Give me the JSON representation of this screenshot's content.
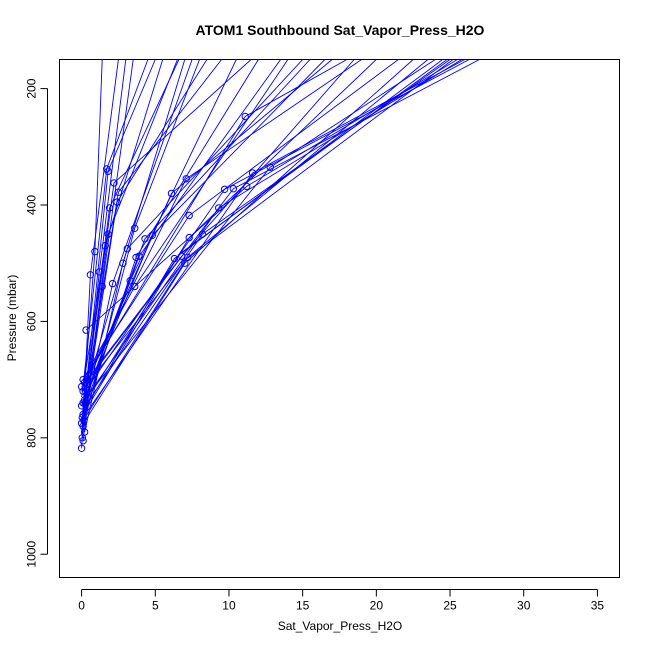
{
  "chart_data": {
    "type": "line",
    "title": "ATOM1 Southbound Sat_Vapor_Press_H2O",
    "xlabel": "Sat_Vapor_Press_H2O",
    "ylabel": "Pressure (mbar)",
    "xlim": [
      -1.5,
      36.5
    ],
    "ylim": [
      1040,
      150
    ],
    "y_reversed": true,
    "xticks": [
      0,
      5,
      10,
      15,
      20,
      25,
      30,
      35
    ],
    "yticks": [
      200,
      400,
      600,
      800,
      1000
    ],
    "grid": false,
    "line_color": "#0000ff",
    "marker": "open-circle",
    "points": [
      {
        "x": 0.0,
        "y": 818
      },
      {
        "x": 0.1,
        "y": 805
      },
      {
        "x": 0.05,
        "y": 800
      },
      {
        "x": 0.2,
        "y": 790
      },
      {
        "x": 0.1,
        "y": 780
      },
      {
        "x": 0.0,
        "y": 775
      },
      {
        "x": 0.15,
        "y": 770
      },
      {
        "x": 0.05,
        "y": 765
      },
      {
        "x": 0.1,
        "y": 760
      },
      {
        "x": 0.0,
        "y": 745
      },
      {
        "x": 0.1,
        "y": 740
      },
      {
        "x": 0.2,
        "y": 735
      },
      {
        "x": 0.1,
        "y": 720
      },
      {
        "x": 0.0,
        "y": 712
      },
      {
        "x": 0.2,
        "y": 705
      },
      {
        "x": 0.1,
        "y": 700
      },
      {
        "x": 0.3,
        "y": 615
      },
      {
        "x": 0.6,
        "y": 520
      },
      {
        "x": 0.9,
        "y": 480
      },
      {
        "x": 1.2,
        "y": 515
      },
      {
        "x": 1.4,
        "y": 540
      },
      {
        "x": 1.6,
        "y": 470
      },
      {
        "x": 1.8,
        "y": 450
      },
      {
        "x": 1.9,
        "y": 405
      },
      {
        "x": 1.7,
        "y": 338
      },
      {
        "x": 1.8,
        "y": 342
      },
      {
        "x": 2.2,
        "y": 362
      },
      {
        "x": 2.5,
        "y": 378
      },
      {
        "x": 2.4,
        "y": 395
      },
      {
        "x": 2.1,
        "y": 535
      },
      {
        "x": 2.8,
        "y": 500
      },
      {
        "x": 3.1,
        "y": 475
      },
      {
        "x": 3.3,
        "y": 530
      },
      {
        "x": 3.6,
        "y": 440
      },
      {
        "x": 3.7,
        "y": 490
      },
      {
        "x": 3.9,
        "y": 488
      },
      {
        "x": 3.6,
        "y": 540
      },
      {
        "x": 4.3,
        "y": 458
      },
      {
        "x": 4.8,
        "y": 452
      },
      {
        "x": 6.1,
        "y": 380
      },
      {
        "x": 6.3,
        "y": 492
      },
      {
        "x": 6.8,
        "y": 488
      },
      {
        "x": 7.0,
        "y": 500
      },
      {
        "x": 7.2,
        "y": 490
      },
      {
        "x": 7.1,
        "y": 355
      },
      {
        "x": 7.3,
        "y": 418
      },
      {
        "x": 7.3,
        "y": 456
      },
      {
        "x": 8.2,
        "y": 450
      },
      {
        "x": 9.3,
        "y": 405
      },
      {
        "x": 9.7,
        "y": 373
      },
      {
        "x": 10.3,
        "y": 372
      },
      {
        "x": 11.2,
        "y": 368
      },
      {
        "x": 11.1,
        "y": 248
      },
      {
        "x": 11.6,
        "y": 345
      },
      {
        "x": 12.8,
        "y": 335
      }
    ],
    "profiles": [
      {
        "x": [
          0.0,
          0.6,
          2.5
        ],
        "y": [
          818,
          520,
          150
        ]
      },
      {
        "x": [
          0.1,
          1.4,
          3.5
        ],
        "y": [
          805,
          540,
          150
        ]
      },
      {
        "x": [
          0.05,
          1.8,
          6.5
        ],
        "y": [
          800,
          450,
          150
        ]
      },
      {
        "x": [
          0.2,
          2.8,
          7.0
        ],
        "y": [
          790,
          500,
          150
        ]
      },
      {
        "x": [
          0.1,
          3.6,
          8.0
        ],
        "y": [
          780,
          440,
          150
        ]
      },
      {
        "x": [
          0.0,
          1.9,
          6.6
        ],
        "y": [
          775,
          405,
          150
        ]
      },
      {
        "x": [
          0.15,
          2.4,
          8.5
        ],
        "y": [
          770,
          395,
          150
        ]
      },
      {
        "x": [
          0.05,
          0.9,
          1.4
        ],
        "y": [
          765,
          480,
          150
        ]
      },
      {
        "x": [
          0.1,
          2.2,
          11.5
        ],
        "y": [
          760,
          362,
          150
        ]
      },
      {
        "x": [
          0.0,
          3.1,
          15.0
        ],
        "y": [
          745,
          475,
          150
        ]
      },
      {
        "x": [
          0.1,
          4.3,
          15.5
        ],
        "y": [
          740,
          458,
          150
        ]
      },
      {
        "x": [
          0.2,
          4.8,
          16.5
        ],
        "y": [
          735,
          452,
          150
        ]
      },
      {
        "x": [
          0.1,
          6.1,
          17.0
        ],
        "y": [
          720,
          380,
          150
        ]
      },
      {
        "x": [
          0.0,
          6.8,
          18.5
        ],
        "y": [
          712,
          488,
          150
        ]
      },
      {
        "x": [
          0.2,
          7.1,
          19.0
        ],
        "y": [
          705,
          355,
          150
        ]
      },
      {
        "x": [
          0.1,
          7.3,
          21.5
        ],
        "y": [
          700,
          418,
          150
        ]
      },
      {
        "x": [
          0.0,
          7.0,
          22.5
        ],
        "y": [
          780,
          500,
          150
        ]
      },
      {
        "x": [
          0.1,
          7.2,
          23.5
        ],
        "y": [
          770,
          490,
          150
        ]
      },
      {
        "x": [
          0.0,
          6.3,
          24.5
        ],
        "y": [
          760,
          492,
          150
        ]
      },
      {
        "x": [
          0.1,
          8.2,
          25.0
        ],
        "y": [
          750,
          450,
          150
        ]
      },
      {
        "x": [
          0.2,
          9.3,
          25.8
        ],
        "y": [
          735,
          405,
          150
        ]
      },
      {
        "x": [
          0.1,
          9.7,
          26.3
        ],
        "y": [
          725,
          373,
          150
        ]
      },
      {
        "x": [
          0.0,
          10.3,
          27.0
        ],
        "y": [
          715,
          372,
          150
        ]
      },
      {
        "x": [
          0.3,
          11.2,
          25.5
        ],
        "y": [
          615,
          368,
          150
        ]
      },
      {
        "x": [
          0.1,
          11.6,
          26.0
        ],
        "y": [
          765,
          345,
          150
        ]
      },
      {
        "x": [
          0.0,
          12.8,
          24.0
        ],
        "y": [
          740,
          335,
          150
        ]
      },
      {
        "x": [
          0.2,
          11.1,
          18.0
        ],
        "y": [
          700,
          248,
          150
        ]
      },
      {
        "x": [
          0.1,
          7.3,
          20.0
        ],
        "y": [
          760,
          456,
          150
        ]
      },
      {
        "x": [
          0.0,
          3.7,
          12.0
        ],
        "y": [
          775,
          490,
          150
        ]
      },
      {
        "x": [
          0.1,
          3.9,
          13.5
        ],
        "y": [
          755,
          488,
          150
        ]
      },
      {
        "x": [
          0.05,
          3.3,
          10.5
        ],
        "y": [
          745,
          530,
          150
        ]
      },
      {
        "x": [
          0.0,
          1.6,
          5.5
        ],
        "y": [
          730,
          470,
          150
        ]
      },
      {
        "x": [
          0.1,
          1.7,
          4.5
        ],
        "y": [
          710,
          338,
          150
        ]
      },
      {
        "x": [
          0.0,
          1.8,
          5.0
        ],
        "y": [
          790,
          342,
          150
        ]
      },
      {
        "x": [
          0.2,
          2.1,
          7.5
        ],
        "y": [
          760,
          535,
          150
        ]
      },
      {
        "x": [
          0.1,
          1.2,
          3.0
        ],
        "y": [
          780,
          515,
          150
        ]
      },
      {
        "x": [
          0.0,
          2.5,
          9.5
        ],
        "y": [
          770,
          378,
          150
        ]
      },
      {
        "x": [
          0.1,
          3.6,
          14.0
        ],
        "y": [
          700,
          540,
          150
        ]
      },
      {
        "x": [
          0.0,
          7.0,
          25.2
        ],
        "y": [
          720,
          495,
          150
        ]
      },
      {
        "x": [
          0.1,
          6.6,
          24.8
        ],
        "y": [
          745,
          485,
          150
        ]
      }
    ]
  }
}
